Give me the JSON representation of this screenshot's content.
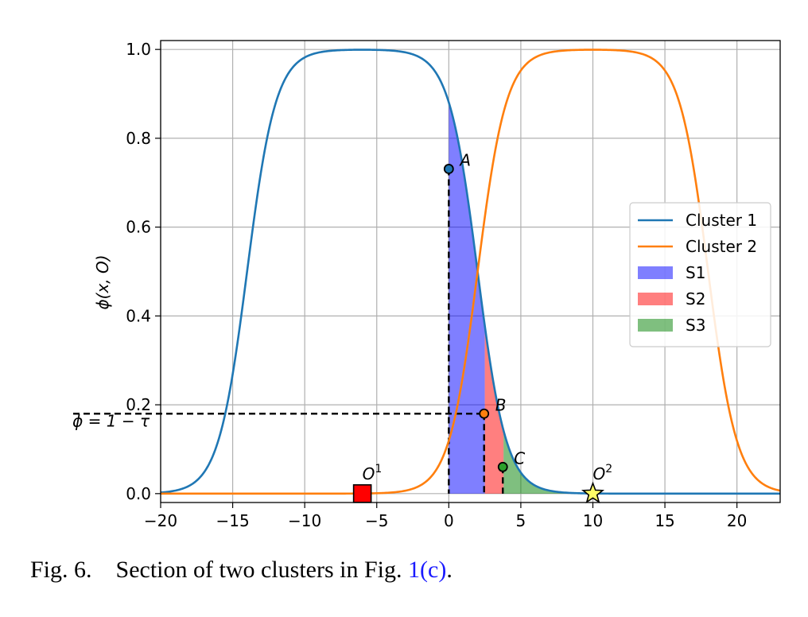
{
  "caption": {
    "prefix": "Fig. 6.",
    "text": "Section of two clusters in Fig.",
    "ref": "1(c)",
    "suffix": "."
  },
  "chart_data": {
    "type": "line",
    "title": "",
    "xlabel": "",
    "ylabel": "ϕ(x, O)",
    "xlim": [
      -20,
      23
    ],
    "ylim": [
      -0.02,
      1.02
    ],
    "grid": true,
    "xticks": [
      -20,
      -15,
      -10,
      -5,
      0,
      5,
      10,
      15,
      20
    ],
    "xtick_labels": [
      "−20",
      "−15",
      "−10",
      "−5",
      "0",
      "5",
      "10",
      "15",
      "20"
    ],
    "yticks": [
      0.0,
      0.2,
      0.4,
      0.6,
      0.8,
      1.0
    ],
    "ytick_labels": [
      "0.0",
      "0.2",
      "0.4",
      "0.6",
      "0.8",
      "1.0"
    ],
    "series": [
      {
        "name": "Cluster 1",
        "center": -6,
        "halfwidth": 8,
        "steepness": 1,
        "color": "#1f77b4"
      },
      {
        "name": "Cluster 2",
        "center": 10,
        "halfwidth": 8,
        "steepness": 1,
        "color": "#ff7f0e"
      }
    ],
    "regions": [
      {
        "name": "S1",
        "x_from": 0,
        "x_to": 2.5,
        "color": "#0000ff",
        "alpha": 0.5
      },
      {
        "name": "S2",
        "x_from": 2.5,
        "x_to": 3.8,
        "color": "#ff0000",
        "alpha": 0.5
      },
      {
        "name": "S3",
        "x_from": 3.8,
        "x_to": 10,
        "color": "#008000",
        "alpha": 0.5
      }
    ],
    "points": [
      {
        "label": "A",
        "x": 0,
        "y": 0.731,
        "fill": "#1f77b4"
      },
      {
        "label": "B",
        "x": 2.45,
        "y": 0.18,
        "fill": "#ff7f0e"
      },
      {
        "label": "C",
        "x": 3.75,
        "y": 0.06,
        "fill": "#2ca02c"
      }
    ],
    "threshold": {
      "label": "ϕ = 1 − τ",
      "y": 0.18,
      "x_to": 2.45
    },
    "centers": [
      {
        "label": "O",
        "sup": "1",
        "x": -6,
        "y": 0,
        "marker": "square",
        "color": "#ff0000"
      },
      {
        "label": "O",
        "sup": "2",
        "x": 10,
        "y": 0,
        "marker": "star",
        "color": "#ffff66"
      }
    ],
    "legend": {
      "position": "center-right",
      "entries": [
        {
          "label": "Cluster 1",
          "kind": "line",
          "color": "#1f77b4"
        },
        {
          "label": "Cluster 2",
          "kind": "line",
          "color": "#ff7f0e"
        },
        {
          "label": "S1",
          "kind": "patch",
          "color": "#0000ff"
        },
        {
          "label": "S2",
          "kind": "patch",
          "color": "#ff0000"
        },
        {
          "label": "S3",
          "kind": "patch",
          "color": "#008000"
        }
      ]
    }
  }
}
